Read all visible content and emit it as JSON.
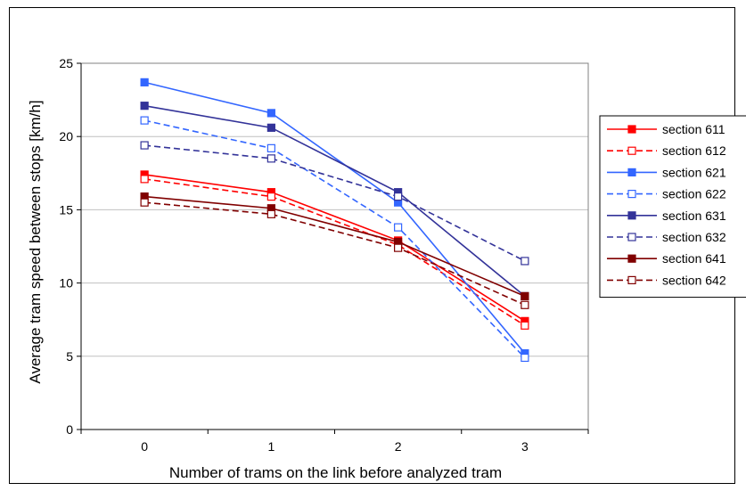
{
  "chart_data": {
    "type": "line",
    "title": "",
    "xlabel": "Number of trams on the link before analyzed tram",
    "ylabel": "Average tram speed between stops [km/h]",
    "x": [
      0,
      1,
      2,
      3
    ],
    "x_ticks": [
      "0",
      "1",
      "2",
      "3"
    ],
    "y_ticks": [
      "0",
      "5",
      "10",
      "15",
      "20",
      "25"
    ],
    "ylim": [
      0,
      25
    ],
    "grid": "horizontal",
    "legend_position": "right",
    "series": [
      {
        "name": "section 611",
        "values": [
          17.4,
          16.2,
          12.9,
          7.4
        ],
        "color": "#ff0000",
        "dashed": false,
        "marker": "filled"
      },
      {
        "name": "section 612",
        "values": [
          17.1,
          15.9,
          12.6,
          7.1
        ],
        "color": "#ff0000",
        "dashed": true,
        "marker": "open"
      },
      {
        "name": "section 621",
        "values": [
          23.7,
          21.6,
          15.5,
          5.2
        ],
        "color": "#3366ff",
        "dashed": false,
        "marker": "filled"
      },
      {
        "name": "section 622",
        "values": [
          21.1,
          19.2,
          13.8,
          4.9
        ],
        "color": "#3366ff",
        "dashed": true,
        "marker": "open"
      },
      {
        "name": "section 631",
        "values": [
          22.1,
          20.6,
          16.2,
          9.1
        ],
        "color": "#333399",
        "dashed": false,
        "marker": "filled"
      },
      {
        "name": "section 632",
        "values": [
          19.4,
          18.5,
          15.9,
          11.5
        ],
        "color": "#333399",
        "dashed": true,
        "marker": "open"
      },
      {
        "name": "section 641",
        "values": [
          15.9,
          15.1,
          12.8,
          9.1
        ],
        "color": "#800000",
        "dashed": false,
        "marker": "filled"
      },
      {
        "name": "section 642",
        "values": [
          15.5,
          14.7,
          12.4,
          8.5
        ],
        "color": "#800000",
        "dashed": true,
        "marker": "open"
      }
    ]
  }
}
